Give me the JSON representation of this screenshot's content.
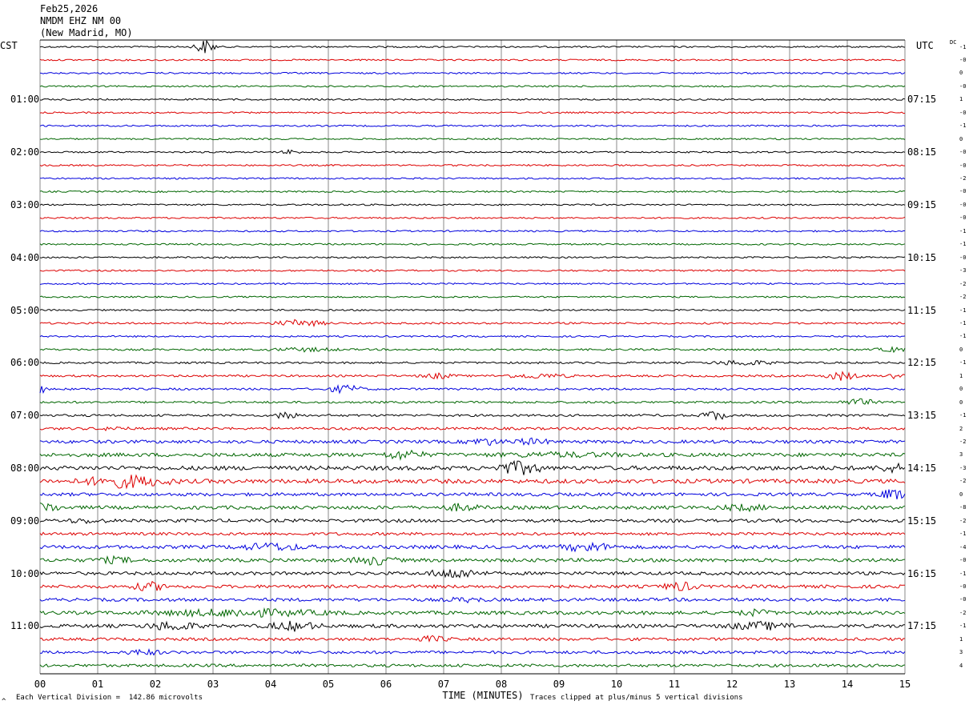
{
  "header": {
    "date": "Feb25,2026",
    "station": "NMDM EHZ NM 00",
    "location": "(New Madrid, MO)"
  },
  "left_tz": "CST",
  "right_tz": "UTC",
  "dc_label": "DC",
  "footer": {
    "scale_text": "Each Vertical Division =  142.86 microvolts",
    "clip_text": "Traces clipped at plus/minus 5 vertical divisions",
    "mark": "^"
  },
  "colors": {
    "trace_cycle": [
      "#000000",
      "#dd0000",
      "#0000dd",
      "#006600"
    ],
    "grid": "#888888"
  },
  "chart_data": {
    "type": "line",
    "title": "NMDM EHZ NM 00",
    "xlabel": "TIME (MINUTES)",
    "ylabel": "",
    "xlim": [
      0,
      15
    ],
    "x_ticks": [
      "00",
      "01",
      "02",
      "03",
      "04",
      "05",
      "06",
      "07",
      "08",
      "09",
      "10",
      "11",
      "12",
      "13",
      "14",
      "15"
    ],
    "left_time_labels": [
      "01:00",
      "02:00",
      "03:00",
      "04:00",
      "05:00",
      "06:00",
      "07:00",
      "08:00",
      "09:00",
      "10:00",
      "11:00"
    ],
    "right_time_labels": [
      "07:15",
      "08:15",
      "09:15",
      "10:15",
      "11:15",
      "12:15",
      "13:15",
      "14:15",
      "15:15",
      "16:15",
      "17:15"
    ],
    "dc_offsets": [
      "-1",
      "-0",
      "0",
      "-0",
      "1",
      "-0",
      "-1",
      "0",
      "-0",
      "-0",
      "-2",
      "-0",
      "-0",
      "-0",
      "-1",
      "-1",
      "-0",
      "-3",
      "-2",
      "-2",
      "-1",
      "-1",
      "-1",
      "0",
      "-1",
      "1",
      "0",
      "0",
      "-1",
      "2",
      "-2",
      "3",
      "-3",
      "-2",
      "0",
      "-8",
      "-2",
      "-1",
      "-4",
      "-0",
      "-1",
      "-0",
      "-0",
      "-2",
      "-1",
      "1",
      "3",
      "4"
    ],
    "series": [
      {
        "row": 0,
        "base": 1.0,
        "events": [
          [
            2.85,
            0.25,
            10
          ]
        ]
      },
      {
        "row": 1,
        "base": 1.0,
        "events": []
      },
      {
        "row": 2,
        "base": 1.0,
        "events": []
      },
      {
        "row": 3,
        "base": 1.0,
        "events": []
      },
      {
        "row": 4,
        "base": 1.0,
        "events": []
      },
      {
        "row": 5,
        "base": 1.0,
        "events": []
      },
      {
        "row": 6,
        "base": 1.0,
        "events": []
      },
      {
        "row": 7,
        "base": 1.0,
        "events": []
      },
      {
        "row": 8,
        "base": 1.0,
        "events": [
          [
            4.35,
            0.2,
            3
          ]
        ]
      },
      {
        "row": 9,
        "base": 1.0,
        "events": []
      },
      {
        "row": 10,
        "base": 1.0,
        "events": []
      },
      {
        "row": 11,
        "base": 1.0,
        "events": []
      },
      {
        "row": 12,
        "base": 1.0,
        "events": []
      },
      {
        "row": 13,
        "base": 1.0,
        "events": []
      },
      {
        "row": 14,
        "base": 1.0,
        "events": []
      },
      {
        "row": 15,
        "base": 1.0,
        "events": []
      },
      {
        "row": 16,
        "base": 1.0,
        "events": []
      },
      {
        "row": 17,
        "base": 1.0,
        "events": []
      },
      {
        "row": 18,
        "base": 1.0,
        "events": []
      },
      {
        "row": 19,
        "base": 1.0,
        "events": []
      },
      {
        "row": 20,
        "base": 1.0,
        "events": []
      },
      {
        "row": 21,
        "base": 1.2,
        "events": [
          [
            4.5,
            0.6,
            4
          ]
        ]
      },
      {
        "row": 22,
        "base": 1.0,
        "events": []
      },
      {
        "row": 23,
        "base": 1.2,
        "events": [
          [
            4.6,
            0.8,
            2
          ],
          [
            14.8,
            0.4,
            2.5
          ]
        ]
      },
      {
        "row": 24,
        "base": 1.2,
        "events": [
          [
            12.2,
            0.7,
            3
          ]
        ]
      },
      {
        "row": 25,
        "base": 1.3,
        "events": [
          [
            6.9,
            0.4,
            3
          ],
          [
            8.6,
            0.8,
            2.5
          ],
          [
            13.9,
            0.4,
            5
          ],
          [
            14.85,
            0.2,
            4
          ]
        ]
      },
      {
        "row": 26,
        "base": 1.3,
        "events": [
          [
            5.3,
            0.4,
            5
          ],
          [
            0.0,
            0.15,
            5
          ]
        ]
      },
      {
        "row": 27,
        "base": 1.3,
        "events": [
          [
            14.2,
            0.4,
            4
          ]
        ]
      },
      {
        "row": 28,
        "base": 1.4,
        "events": [
          [
            4.3,
            0.25,
            6
          ],
          [
            11.7,
            0.3,
            6
          ]
        ]
      },
      {
        "row": 29,
        "base": 1.6,
        "events": [
          [
            1.3,
            0.3,
            2
          ]
        ]
      },
      {
        "row": 30,
        "base": 2.0,
        "events": [
          [
            7.7,
            0.4,
            4
          ],
          [
            8.5,
            0.5,
            3
          ]
        ]
      },
      {
        "row": 31,
        "base": 2.3,
        "events": [
          [
            6.3,
            0.5,
            5
          ],
          [
            9.0,
            1.5,
            2
          ]
        ]
      },
      {
        "row": 32,
        "base": 2.6,
        "events": [
          [
            8.3,
            0.5,
            9
          ],
          [
            14.8,
            0.4,
            4
          ]
        ]
      },
      {
        "row": 33,
        "base": 2.6,
        "events": [
          [
            1.5,
            1.0,
            7
          ]
        ]
      },
      {
        "row": 34,
        "base": 2.0,
        "events": [
          [
            14.8,
            0.4,
            6
          ]
        ]
      },
      {
        "row": 35,
        "base": 2.2,
        "events": [
          [
            0.1,
            0.3,
            6
          ],
          [
            7.3,
            0.4,
            4
          ],
          [
            12.2,
            0.6,
            3
          ]
        ]
      },
      {
        "row": 36,
        "base": 2.0,
        "events": [
          [
            0.8,
            0.5,
            2
          ]
        ]
      },
      {
        "row": 37,
        "base": 1.8,
        "events": []
      },
      {
        "row": 38,
        "base": 2.2,
        "events": [
          [
            4.0,
            0.8,
            4
          ],
          [
            9.5,
            0.6,
            5
          ]
        ]
      },
      {
        "row": 39,
        "base": 2.2,
        "events": [
          [
            1.3,
            0.5,
            3
          ],
          [
            5.8,
            0.5,
            5
          ]
        ]
      },
      {
        "row": 40,
        "base": 2.0,
        "events": [
          [
            7.2,
            0.6,
            6
          ]
        ]
      },
      {
        "row": 41,
        "base": 2.0,
        "events": [
          [
            1.9,
            0.4,
            5
          ],
          [
            11.1,
            0.4,
            5
          ]
        ]
      },
      {
        "row": 42,
        "base": 2.0,
        "events": [
          [
            7.4,
            0.5,
            2
          ]
        ]
      },
      {
        "row": 43,
        "base": 2.2,
        "events": [
          [
            3.5,
            2.0,
            4
          ],
          [
            12.4,
            0.4,
            3
          ]
        ]
      },
      {
        "row": 44,
        "base": 2.2,
        "events": [
          [
            2.3,
            0.6,
            5
          ],
          [
            4.4,
            0.6,
            5
          ],
          [
            12.5,
            0.8,
            4
          ]
        ]
      },
      {
        "row": 45,
        "base": 1.8,
        "events": [
          [
            6.8,
            0.4,
            3
          ]
        ]
      },
      {
        "row": 46,
        "base": 1.8,
        "events": [
          [
            1.8,
            0.4,
            3
          ]
        ]
      },
      {
        "row": 47,
        "base": 1.8,
        "events": []
      }
    ]
  }
}
